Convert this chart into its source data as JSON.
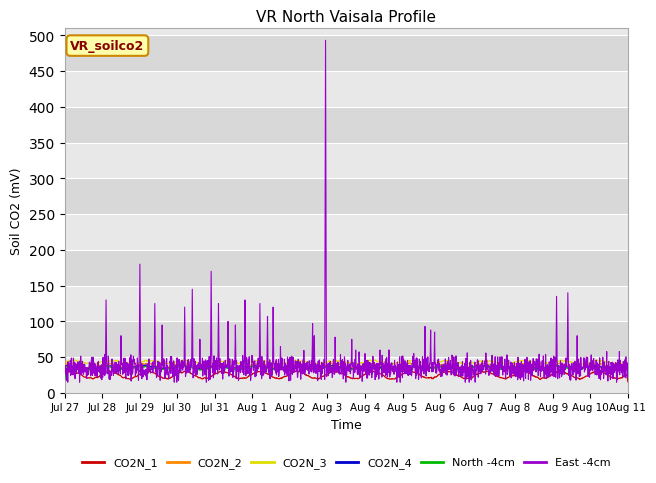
{
  "title": "VR North Vaisala Profile",
  "ylabel": "Soil CO2 (mV)",
  "xlabel": "Time",
  "ylim": [
    0,
    510
  ],
  "yticks": [
    0,
    50,
    100,
    150,
    200,
    250,
    300,
    350,
    400,
    450,
    500
  ],
  "plot_bg_color": "#e8e8e8",
  "alt_band_color": "#d8d8d8",
  "annotation_text": "VR_soilco2",
  "annotation_bg": "#ffffaa",
  "annotation_border": "#cc8800",
  "annotation_text_color": "#880000",
  "series_colors": {
    "CO2N_1": "#cc0000",
    "CO2N_2": "#ff8800",
    "CO2N_3": "#dddd00",
    "CO2N_4": "#0000cc",
    "North_4cm": "#00bb00",
    "East_4cm": "#9900cc"
  },
  "legend_labels": [
    "CO2N_1",
    "CO2N_2",
    "CO2N_3",
    "CO2N_4",
    "North -4cm",
    "East -4cm"
  ],
  "x_tick_labels": [
    "Jul 27",
    "Jul 28",
    "Jul 29",
    "Jul 30",
    "Jul 31",
    "Aug 1",
    "Aug 2",
    "Aug 3",
    "Aug 4",
    "Aug 5",
    "Aug 6",
    "Aug 7",
    "Aug 8",
    "Aug 9",
    "Aug 10",
    "Aug 11"
  ],
  "n_points": 2000,
  "days_span": 15
}
